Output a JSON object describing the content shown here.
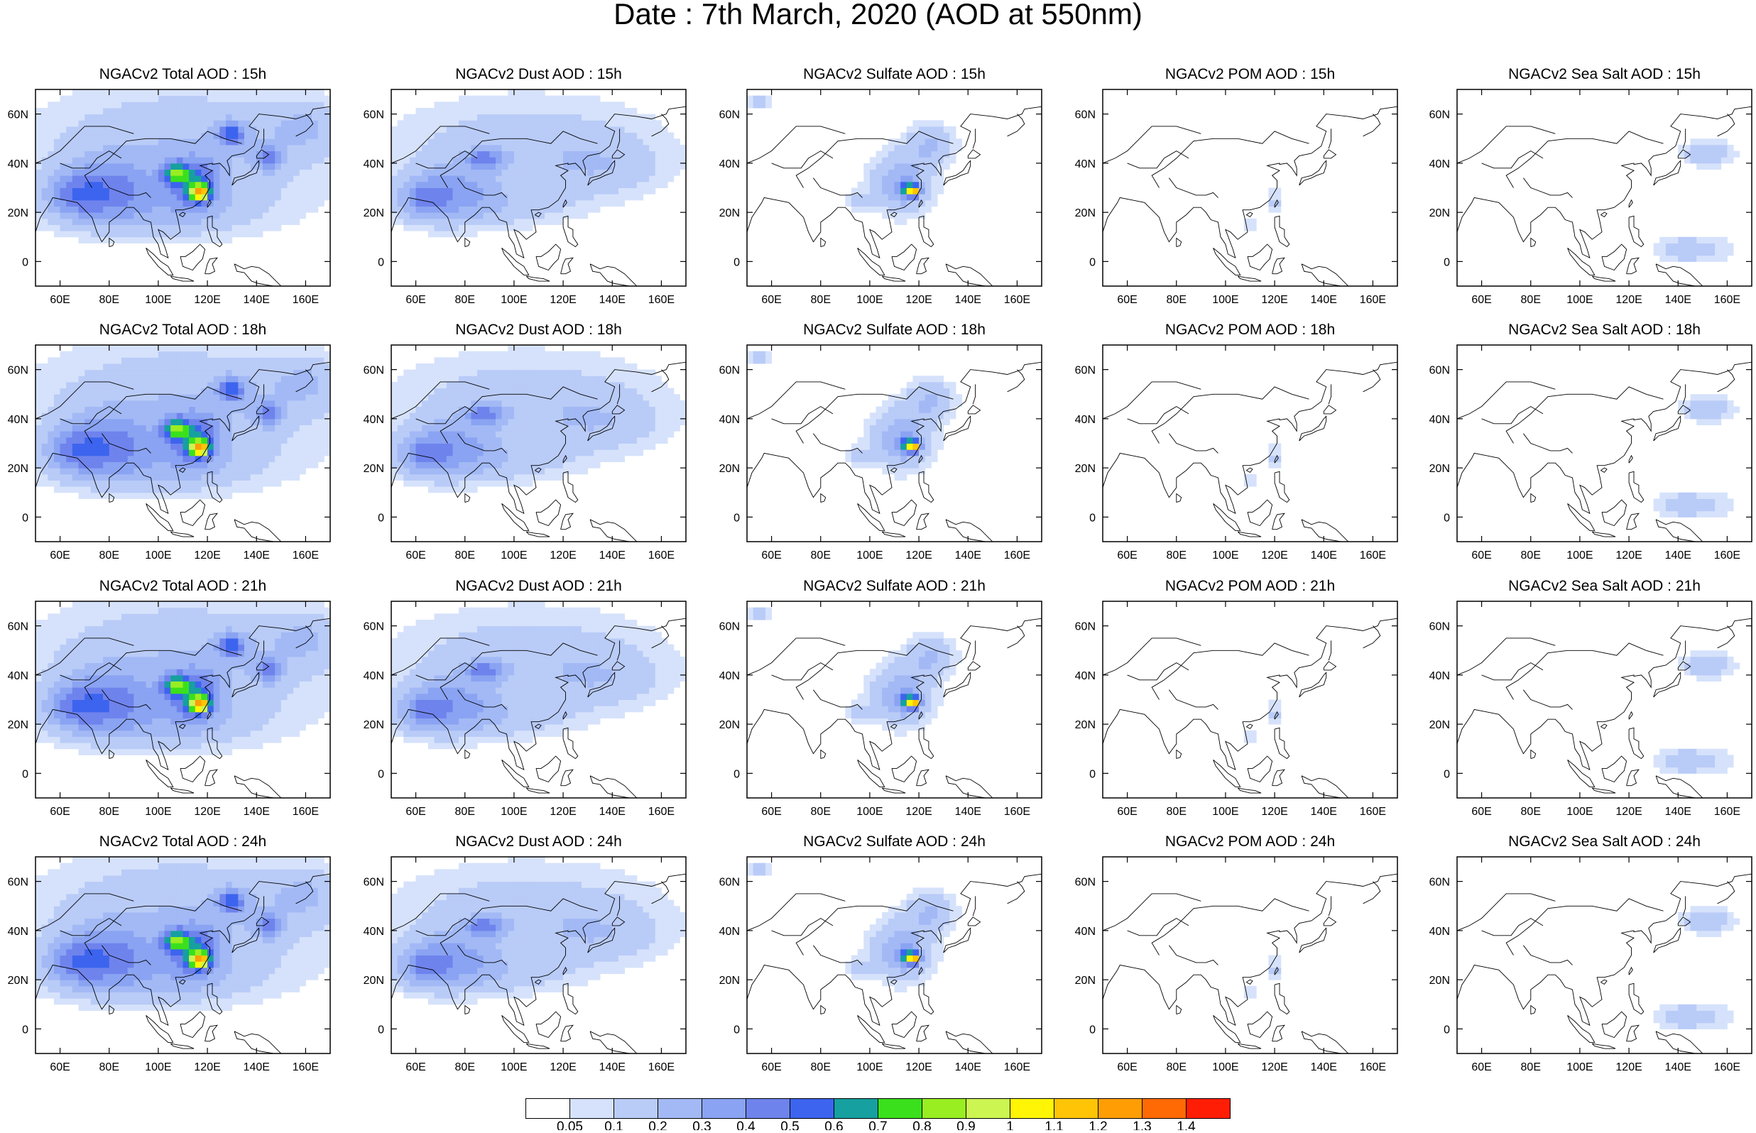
{
  "title": "Date : 7th March, 2020 (AOD at 550nm)",
  "chart_data": {
    "type": "heatmap",
    "title": "Date : 7th March, 2020 (AOD at 550nm)",
    "rows": [
      "15h",
      "18h",
      "21h",
      "24h"
    ],
    "columns": [
      "Total",
      "Dust",
      "Sulfate",
      "POM",
      "Sea Salt"
    ],
    "panel_titles": [
      [
        "NGACv2 Total AOD : 15h",
        "NGACv2 Dust AOD : 15h",
        "NGACv2 Sulfate AOD : 15h",
        "NGACv2 POM AOD : 15h",
        "NGACv2 Sea Salt AOD : 15h"
      ],
      [
        "NGACv2 Total AOD : 18h",
        "NGACv2 Dust AOD : 18h",
        "NGACv2 Sulfate AOD : 18h",
        "NGACv2 POM AOD : 18h",
        "NGACv2 Sea Salt AOD : 18h"
      ],
      [
        "NGACv2 Total AOD : 21h",
        "NGACv2 Dust AOD : 21h",
        "NGACv2 Sulfate AOD : 21h",
        "NGACv2 POM AOD : 21h",
        "NGACv2 Sea Salt AOD : 21h"
      ],
      [
        "NGACv2 Total AOD : 24h",
        "NGACv2 Dust AOD : 24h",
        "NGACv2 Sulfate AOD : 24h",
        "NGACv2 POM AOD : 24h",
        "NGACv2 Sea Salt  AOD : 24h"
      ]
    ],
    "x_ticks": [
      60,
      80,
      100,
      120,
      140,
      160
    ],
    "x_tick_labels": [
      "60E",
      "80E",
      "100E",
      "120E",
      "140E",
      "160E"
    ],
    "y_ticks": [
      0,
      20,
      40,
      60
    ],
    "y_tick_labels": [
      "0",
      "20N",
      "40N",
      "60N"
    ],
    "xlim": [
      50,
      170
    ],
    "ylim": [
      -10,
      70
    ],
    "colorbar": {
      "levels": [
        0.05,
        0.1,
        0.2,
        0.3,
        0.4,
        0.5,
        0.6,
        0.7,
        0.8,
        0.9,
        1,
        1.1,
        1.2,
        1.3,
        1.4
      ],
      "labels": [
        "0.05",
        "0.1",
        "0.2",
        "0.3",
        "0.4",
        "0.5",
        "0.6",
        "0.7",
        "0.8",
        "0.9",
        "1",
        "1.1",
        "1.2",
        "1.3",
        "1.4"
      ],
      "colors": [
        "#ffffff",
        "#d6e2fb",
        "#b9cbf7",
        "#a2b9f5",
        "#8aa3f2",
        "#6f83ed",
        "#3c64ee",
        "#16a0a0",
        "#3be01c",
        "#99ee22",
        "#ccf552",
        "#fff505",
        "#ffc405",
        "#ff9d05",
        "#ff6a05",
        "#ff1e05"
      ]
    },
    "blobs": {
      "Total": [
        [
          110,
          45,
          60,
          26,
          0.2
        ],
        [
          80,
          30,
          18,
          12,
          0.3
        ],
        [
          65,
          27,
          12,
          9,
          0.25
        ],
        [
          100,
          20,
          40,
          10,
          0.15
        ],
        [
          115,
          32,
          10,
          10,
          0.4
        ],
        [
          117,
          28,
          4,
          3,
          0.8
        ],
        [
          107,
          36,
          5,
          4,
          0.5
        ],
        [
          130,
          52,
          6,
          5,
          0.4
        ],
        [
          145,
          42,
          6,
          5,
          0.3
        ],
        [
          160,
          55,
          15,
          10,
          0.15
        ]
      ],
      "Dust": [
        [
          105,
          48,
          55,
          20,
          0.15
        ],
        [
          75,
          28,
          18,
          12,
          0.3
        ],
        [
          62,
          25,
          10,
          8,
          0.25
        ],
        [
          88,
          42,
          8,
          4,
          0.3
        ],
        [
          135,
          38,
          25,
          12,
          0.12
        ],
        [
          100,
          22,
          25,
          8,
          0.12
        ]
      ],
      "Sulfate": [
        [
          113,
          32,
          12,
          12,
          0.3
        ],
        [
          116,
          29,
          4,
          3,
          0.5
        ],
        [
          118,
          29,
          2,
          2,
          0.7
        ],
        [
          125,
          48,
          10,
          8,
          0.2
        ],
        [
          55,
          65,
          5,
          4,
          0.12
        ],
        [
          95,
          25,
          6,
          4,
          0.1
        ]
      ],
      "POM": [
        [
          120,
          24,
          3,
          6,
          0.12
        ],
        [
          110,
          15,
          3,
          3,
          0.1
        ]
      ],
      "Sea Salt": [
        [
          152,
          44,
          10,
          5,
          0.2
        ],
        [
          150,
          5,
          15,
          6,
          0.12
        ],
        [
          140,
          5,
          8,
          4,
          0.12
        ]
      ]
    }
  }
}
